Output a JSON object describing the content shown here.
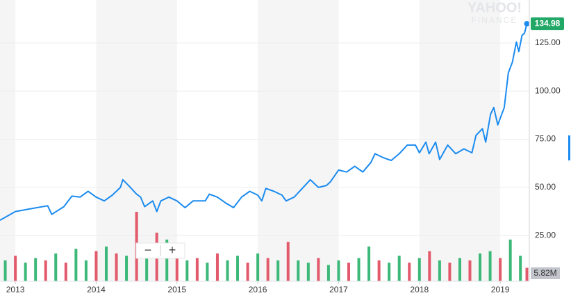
{
  "chart_data": {
    "type": "line",
    "watermark": {
      "brand": "YAHOO!",
      "product": "FINANCE"
    },
    "controls": {
      "zoom_out": "−",
      "zoom_in": "+"
    },
    "x": [
      2012.81,
      2013.0,
      2013.2,
      2013.4,
      2013.45,
      2013.6,
      2013.7,
      2013.8,
      2013.9,
      2014.0,
      2014.1,
      2014.2,
      2014.3,
      2014.33,
      2014.4,
      2014.5,
      2014.55,
      2014.6,
      2014.7,
      2014.75,
      2014.8,
      2014.9,
      2015.0,
      2015.1,
      2015.2,
      2015.35,
      2015.4,
      2015.5,
      2015.6,
      2015.7,
      2015.8,
      2015.9,
      2016.0,
      2016.05,
      2016.1,
      2016.2,
      2016.3,
      2016.35,
      2016.45,
      2016.55,
      2016.65,
      2016.75,
      2016.85,
      2016.9,
      2017.0,
      2017.1,
      2017.2,
      2017.3,
      2017.4,
      2017.45,
      2017.55,
      2017.65,
      2017.75,
      2017.85,
      2017.95,
      2018.0,
      2018.08,
      2018.12,
      2018.2,
      2018.25,
      2018.35,
      2018.45,
      2018.55,
      2018.65,
      2018.7,
      2018.78,
      2018.82,
      2018.88,
      2018.92,
      2018.97,
      2019.05,
      2019.1,
      2019.15,
      2019.2,
      2019.23,
      2019.27,
      2019.3,
      2019.33
    ],
    "series": [
      {
        "color": "#1a8bf0",
        "values": [
          33,
          37.5,
          39,
          40.5,
          36,
          40,
          45.5,
          45,
          48,
          45,
          43,
          46,
          50,
          54,
          51,
          46.5,
          45,
          40,
          43,
          37.5,
          43,
          45,
          43,
          39.5,
          43,
          43,
          46.5,
          45,
          42,
          39.5,
          45,
          48,
          46,
          43,
          49.5,
          48,
          46,
          43,
          45,
          49.5,
          54,
          50,
          51,
          53,
          59,
          58,
          61,
          58,
          63,
          67.5,
          65.5,
          64,
          67.5,
          72,
          72,
          68,
          73.5,
          67.5,
          73.5,
          64.5,
          72,
          67.5,
          70,
          68,
          77,
          80.5,
          73.5,
          88,
          91.5,
          82.5,
          91.5,
          109.5,
          115,
          125.5,
          120.5,
          129,
          130,
          134.98
        ]
      }
    ],
    "last_label_color": "#21a866",
    "xlim": [
      2012.81,
      2019.36
    ],
    "xticks": [
      2013,
      2014,
      2015,
      2016,
      2017,
      2018,
      2019
    ],
    "ylim": [
      3.1,
      147.3
    ],
    "yticks": [
      {
        "value": 25,
        "label": "25.00"
      },
      {
        "value": 50,
        "label": "50.00"
      },
      {
        "value": 75,
        "label": "75.00"
      },
      {
        "value": 100,
        "label": "100.00"
      },
      {
        "value": 125,
        "label": "125.00"
      }
    ],
    "grid": true,
    "volume": {
      "x": [
        2012.875,
        2013.0,
        2013.125,
        2013.25,
        2013.375,
        2013.5,
        2013.625,
        2013.75,
        2013.875,
        2014.0,
        2014.125,
        2014.25,
        2014.375,
        2014.5,
        2014.625,
        2014.75,
        2014.875,
        2015.0,
        2015.125,
        2015.25,
        2015.375,
        2015.5,
        2015.625,
        2015.75,
        2015.875,
        2016.0,
        2016.125,
        2016.25,
        2016.375,
        2016.5,
        2016.625,
        2016.75,
        2016.875,
        2017.0,
        2017.125,
        2017.25,
        2017.375,
        2017.5,
        2017.625,
        2017.75,
        2017.875,
        2018.0,
        2018.125,
        2018.25,
        2018.375,
        2018.5,
        2018.625,
        2018.75,
        2018.875,
        2019.0,
        2019.125,
        2019.25,
        2019.33
      ],
      "values": [
        9,
        11,
        8,
        10,
        9,
        12,
        8,
        14,
        9,
        13,
        15,
        12,
        11,
        30,
        14,
        21,
        18,
        11,
        9,
        10,
        8,
        12,
        9,
        11,
        8,
        12,
        10,
        9,
        17,
        9,
        8,
        10,
        7,
        9,
        8,
        10,
        15,
        9,
        8,
        11,
        8,
        10,
        13,
        9,
        8,
        10,
        9,
        12,
        13,
        10,
        18,
        11,
        5.82
      ],
      "value_labels": [
        null,
        null,
        null,
        null,
        null,
        null,
        null,
        null,
        null,
        null,
        null,
        null,
        null,
        null,
        null,
        null,
        null,
        null,
        null,
        null,
        null,
        null,
        null,
        null,
        null,
        null,
        null,
        null,
        null,
        null,
        null,
        null,
        null,
        null,
        null,
        null,
        null,
        null,
        null,
        null,
        null,
        null,
        null,
        null,
        null,
        null,
        null,
        null,
        null,
        null,
        null,
        null,
        "5.82M"
      ],
      "direction": [
        "up",
        "down",
        "up",
        "up",
        "down",
        "up",
        "down",
        "up",
        "up",
        "down",
        "up",
        "down",
        "up",
        "down",
        "up",
        "down",
        "up",
        "down",
        "up",
        "down",
        "up",
        "down",
        "up",
        "up",
        "down",
        "up",
        "down",
        "up",
        "down",
        "up",
        "up",
        "down",
        "up",
        "up",
        "down",
        "up",
        "up",
        "down",
        "up",
        "up",
        "down",
        "up",
        "down",
        "up",
        "down",
        "up",
        "down",
        "up",
        "up",
        "down",
        "up",
        "up",
        "down"
      ],
      "colors": {
        "up": "#3cb878",
        "down": "#e25a6c"
      },
      "vlim": [
        0,
        36
      ],
      "label_color": "#c2c6cc"
    }
  }
}
